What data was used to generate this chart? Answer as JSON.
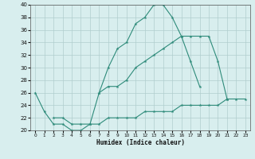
{
  "line1_x": [
    0,
    1,
    2,
    3,
    4,
    5,
    6,
    7,
    8,
    9,
    10,
    11,
    12,
    13,
    14,
    15,
    16,
    17,
    18
  ],
  "line1_y": [
    26,
    23,
    21,
    21,
    20,
    20,
    21,
    26,
    30,
    33,
    34,
    37,
    38,
    40,
    40,
    38,
    35,
    31,
    27
  ],
  "line2_x": [
    7,
    8,
    9,
    10,
    11,
    12,
    13,
    14,
    15,
    16,
    17,
    18,
    19,
    20,
    21
  ],
  "line2_y": [
    26,
    27,
    27,
    28,
    30,
    31,
    32,
    33,
    34,
    35,
    35,
    35,
    35,
    31,
    25
  ],
  "line3_x": [
    2,
    3,
    4,
    5,
    6,
    7,
    8,
    9,
    10,
    11,
    12,
    13,
    14,
    15,
    16,
    17,
    18,
    19,
    20,
    21,
    22,
    23
  ],
  "line3_y": [
    22,
    22,
    21,
    21,
    21,
    21,
    22,
    22,
    22,
    22,
    23,
    23,
    23,
    23,
    24,
    24,
    24,
    24,
    24,
    25,
    25,
    25
  ],
  "color": "#2e8b7a",
  "bg_color": "#d8eeee",
  "grid_color": "#b0cece",
  "xlabel": "Humidex (Indice chaleur)",
  "ylim": [
    20,
    40
  ],
  "xlim": [
    -0.5,
    23.5
  ],
  "yticks": [
    20,
    22,
    24,
    26,
    28,
    30,
    32,
    34,
    36,
    38,
    40
  ],
  "xticks": [
    0,
    1,
    2,
    3,
    4,
    5,
    6,
    7,
    8,
    9,
    10,
    11,
    12,
    13,
    14,
    15,
    16,
    17,
    18,
    19,
    20,
    21,
    22,
    23
  ]
}
